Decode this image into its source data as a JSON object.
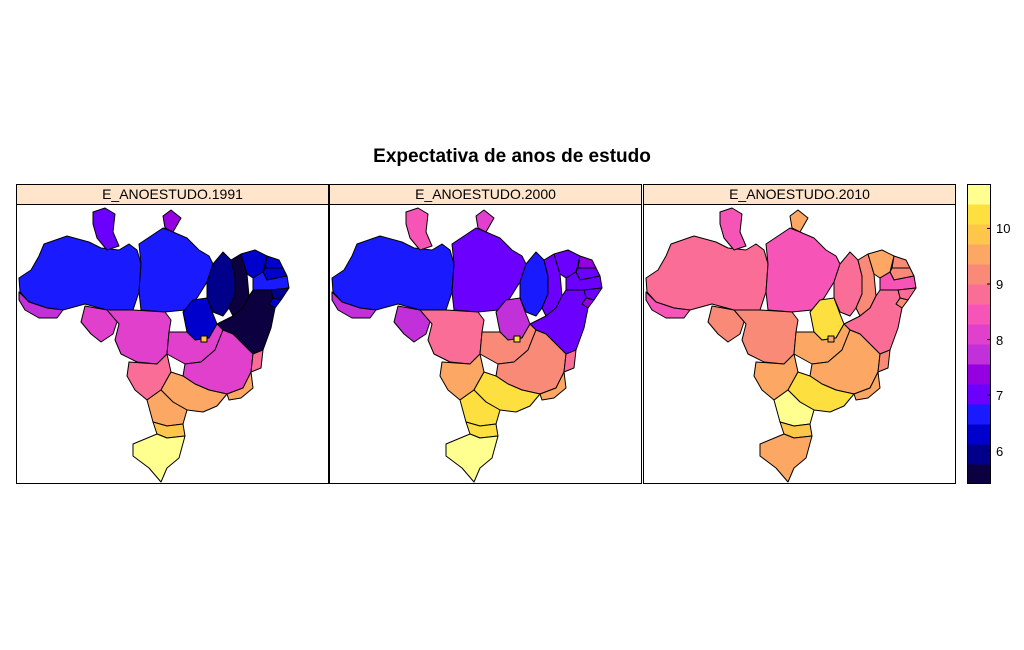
{
  "title": "Expectativa de anos de estudo",
  "panels": [
    {
      "label": "E_ANOESTUDO.1991",
      "regions": {
        "ac": 7.6,
        "am": 6.7,
        "rr": 7.0,
        "pa": 6.7,
        "ap": 7.4,
        "ro": 8.0,
        "mt": 8.2,
        "to": 6.3,
        "ma": 6.1,
        "pi": 5.7,
        "ce": 6.2,
        "rn": 6.3,
        "pb": 6.2,
        "pe": 6.8,
        "al": 6.1,
        "se": 6.2,
        "ba": 5.6,
        "go": 8.0,
        "df": 10.0,
        "ms": 8.7,
        "mg": 8.2,
        "es": 8.8,
        "rj": 9.4,
        "sp": 9.4,
        "pr": 9.5,
        "sc": 10.0,
        "rs": 10.6
      }
    },
    {
      "label": "E_ANOESTUDO.2000",
      "regions": {
        "ac": 7.6,
        "am": 6.5,
        "rr": 8.6,
        "pa": 6.9,
        "ap": 8.2,
        "ro": 7.8,
        "mt": 8.8,
        "to": 7.9,
        "ma": 6.6,
        "pi": 6.9,
        "ce": 7.2,
        "rn": 7.4,
        "pb": 7.1,
        "pe": 7.2,
        "al": 7.0,
        "se": 7.3,
        "ba": 7.2,
        "go": 9.2,
        "df": 10.2,
        "ms": 9.5,
        "mg": 9.2,
        "es": 9.0,
        "rj": 9.4,
        "sp": 10.4,
        "pr": 10.3,
        "sc": 10.4,
        "rs": 10.6
      }
    },
    {
      "label": "E_ANOESTUDO.2010",
      "regions": {
        "ac": 8.6,
        "am": 8.7,
        "rr": 8.6,
        "pa": 8.5,
        "ap": 9.4,
        "ro": 9.1,
        "mt": 9.2,
        "to": 10.3,
        "ma": 9.0,
        "pi": 9.1,
        "ce": 9.6,
        "rn": 9.3,
        "pb": 9.1,
        "pe": 8.6,
        "al": 8.8,
        "se": 9.2,
        "ba": 9.0,
        "go": 9.7,
        "df": 9.6,
        "ms": 9.7,
        "mg": 9.5,
        "es": 9.3,
        "rj": 9.6,
        "sp": 10.4,
        "pr": 10.8,
        "sc": 10.0,
        "rs": 9.7
      }
    }
  ],
  "legend": {
    "min": 5.4,
    "max": 10.8,
    "ticks": [
      "6",
      "7",
      "8",
      "9",
      "10"
    ],
    "colors": [
      "#0d0040",
      "#00008b",
      "#0000cd",
      "#1a1aff",
      "#6b00ff",
      "#9400e0",
      "#c230d9",
      "#e040cc",
      "#f754b7",
      "#fa6d97",
      "#fa8a78",
      "#fca864",
      "#fec64a",
      "#fde040",
      "#ffff90"
    ]
  }
}
